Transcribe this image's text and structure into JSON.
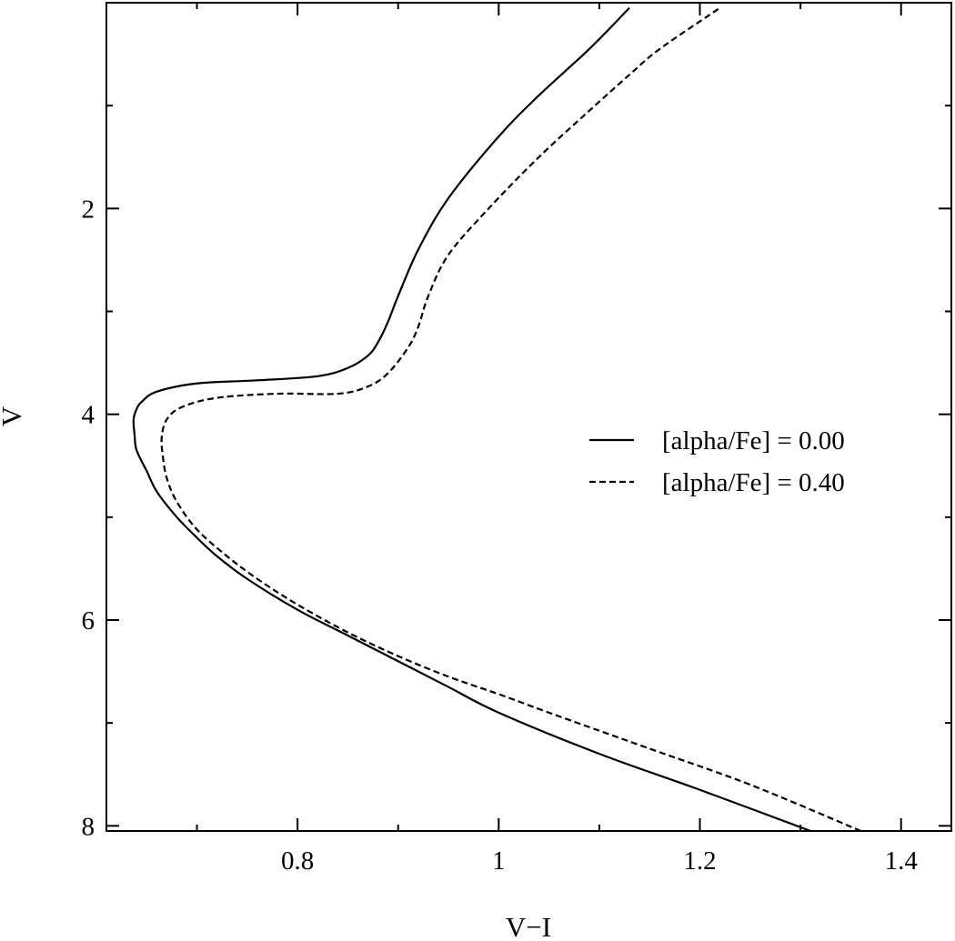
{
  "chart_data": {
    "type": "line",
    "title": "",
    "xlabel": "V−I",
    "ylabel": "V",
    "xlim": [
      0.61,
      1.45
    ],
    "ylim": [
      8.05,
      0.0
    ],
    "y_inverted": true,
    "grid": false,
    "xticks": [
      0.8,
      1,
      1.2,
      1.4
    ],
    "xtick_labels": [
      "0.8",
      "1",
      "1.2",
      "1.4"
    ],
    "yticks": [
      2,
      4,
      6,
      8
    ],
    "ytick_labels": [
      "2",
      "4",
      "6",
      "8"
    ],
    "legend_position": "right",
    "series": [
      {
        "name": "[alpha/Fe] = 0.00",
        "style": "solid",
        "color": "#000000",
        "x": [
          1.31,
          1.2,
          1.1,
          1.0,
          0.95,
          0.9,
          0.85,
          0.8,
          0.75,
          0.72,
          0.7,
          0.68,
          0.66,
          0.65,
          0.64,
          0.638,
          0.637,
          0.64,
          0.645,
          0.66,
          0.7,
          0.76,
          0.82,
          0.85,
          0.87,
          0.88,
          0.89,
          0.9,
          0.92,
          0.95,
          1.0,
          1.04,
          1.09,
          1.13
        ],
        "y": [
          8.05,
          7.65,
          7.3,
          6.9,
          6.65,
          6.4,
          6.15,
          5.9,
          5.6,
          5.38,
          5.2,
          5.0,
          4.75,
          4.55,
          4.35,
          4.2,
          4.05,
          3.95,
          3.88,
          3.78,
          3.7,
          3.67,
          3.63,
          3.55,
          3.43,
          3.3,
          3.1,
          2.85,
          2.4,
          1.9,
          1.3,
          0.9,
          0.45,
          0.05
        ]
      },
      {
        "name": "[alpha/Fe] = 0.40",
        "style": "dashed",
        "color": "#000000",
        "x": [
          1.36,
          1.25,
          1.15,
          1.05,
          1.0,
          0.95,
          0.9,
          0.85,
          0.8,
          0.76,
          0.73,
          0.7,
          0.68,
          0.67,
          0.666,
          0.665,
          0.67,
          0.685,
          0.72,
          0.78,
          0.84,
          0.87,
          0.89,
          0.91,
          0.92,
          0.93,
          0.95,
          0.99,
          1.04,
          1.09,
          1.13,
          1.16,
          1.22
        ],
        "y": [
          8.05,
          7.6,
          7.25,
          6.9,
          6.72,
          6.55,
          6.35,
          6.12,
          5.85,
          5.6,
          5.38,
          5.12,
          4.85,
          4.62,
          4.4,
          4.22,
          4.05,
          3.93,
          3.84,
          3.8,
          3.8,
          3.73,
          3.6,
          3.35,
          3.15,
          2.85,
          2.45,
          2.0,
          1.5,
          1.05,
          0.7,
          0.45,
          0.05
        ]
      }
    ]
  }
}
